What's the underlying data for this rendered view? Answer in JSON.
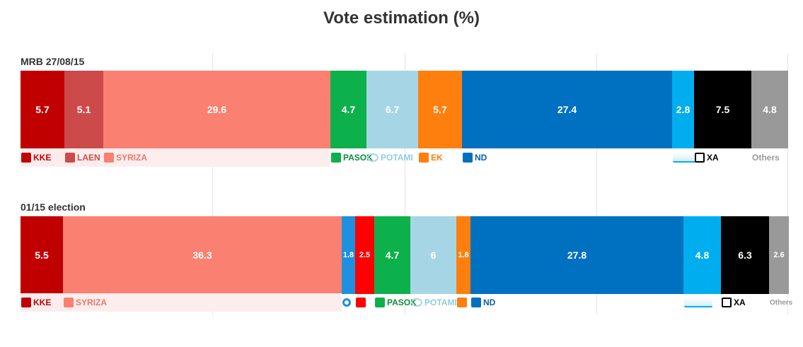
{
  "chart_data": {
    "type": "bar",
    "orientation": "horizontal",
    "stacked": true,
    "title": "Vote estimation (%)",
    "xlim": [
      0,
      100
    ],
    "grid": true,
    "rows": [
      {
        "label": "MRB 27/08/15",
        "segments": [
          {
            "party": "KKE",
            "value": 5.7,
            "color": "#c00000",
            "text_color": "#c00000",
            "icon": "kke-logo-icon",
            "tint": "#fdecec"
          },
          {
            "party": "LAEN",
            "value": 5.1,
            "color": "#cd4a4a",
            "text_color": "#cd4a4a",
            "icon": "laen-logo-icon",
            "tint": "#fdecec"
          },
          {
            "party": "SYRIZA",
            "value": 29.6,
            "color": "#fa8072",
            "text_color": "#f0766a",
            "icon": "syriza-logo-icon",
            "tint": "#fdeeee"
          },
          {
            "party": "PASOK",
            "value": 4.7,
            "color": "#0db14b",
            "text_color": "#0a8f3c",
            "icon": "pasok-logo-icon",
            "tint": ""
          },
          {
            "party": "POTAMI",
            "value": 6.7,
            "color": "#a6d6e5",
            "text_color": "#8fcbe0",
            "icon": "potami-logo-icon",
            "tint": ""
          },
          {
            "party": "EK",
            "value": 5.7,
            "color": "#ff7f0e",
            "text_color": "#ff7f0e",
            "icon": "ek-logo-icon",
            "tint": ""
          },
          {
            "party": "ND",
            "value": 27.4,
            "color": "#0071c1",
            "text_color": "#0b5fa5",
            "icon": "nd-logo-icon",
            "tint": ""
          },
          {
            "party": "",
            "value": 2.8,
            "color": "#00aeef",
            "text_color": "#00aeef",
            "icon": "anel-logo-icon",
            "tint": ""
          },
          {
            "party": "XA",
            "value": 7.5,
            "color": "#000000",
            "text_color": "#000000",
            "icon": "xa-logo-icon",
            "tint": ""
          },
          {
            "party": "Others",
            "value": 4.8,
            "color": "#999999",
            "text_color": "#999999",
            "icon": "",
            "tint": ""
          }
        ]
      },
      {
        "label": "01/15 election",
        "segments": [
          {
            "party": "KKE",
            "value": 5.5,
            "color": "#c00000",
            "text_color": "#c00000",
            "icon": "kke-logo-icon",
            "tint": "#fdecec"
          },
          {
            "party": "SYRIZA",
            "value": 36.3,
            "color": "#fa8072",
            "text_color": "#f0766a",
            "icon": "syriza-logo-icon",
            "tint": "#fdeeee"
          },
          {
            "party": "",
            "value": 1.8,
            "color": "#1e90e0",
            "text_color": "#1e90e0",
            "icon": "blue-party-logo-icon",
            "tint": ""
          },
          {
            "party": "",
            "value": 2.5,
            "color": "#ff0000",
            "text_color": "#ff0000",
            "icon": "red-party-logo-icon",
            "tint": ""
          },
          {
            "party": "PASOK",
            "value": 4.7,
            "color": "#0db14b",
            "text_color": "#0a8f3c",
            "icon": "pasok-logo-icon",
            "tint": ""
          },
          {
            "party": "POTAMI",
            "value": 6,
            "color": "#a6d6e5",
            "text_color": "#8fcbe0",
            "icon": "potami-logo-icon",
            "tint": ""
          },
          {
            "party": "",
            "value": 1.8,
            "color": "#ff7f0e",
            "text_color": "#ff7f0e",
            "icon": "ek-logo-icon",
            "tint": ""
          },
          {
            "party": "ND",
            "value": 27.8,
            "color": "#0071c1",
            "text_color": "#0b5fa5",
            "icon": "nd-logo-icon",
            "tint": ""
          },
          {
            "party": "",
            "value": 4.8,
            "color": "#00aeef",
            "text_color": "#00aeef",
            "icon": "anel-logo-icon",
            "tint": ""
          },
          {
            "party": "XA",
            "value": 6.3,
            "color": "#000000",
            "text_color": "#000000",
            "icon": "xa-logo-icon",
            "tint": ""
          },
          {
            "party": "Others",
            "value": 2.6,
            "color": "#999999",
            "text_color": "#999999",
            "icon": "",
            "tint": ""
          }
        ]
      }
    ]
  }
}
